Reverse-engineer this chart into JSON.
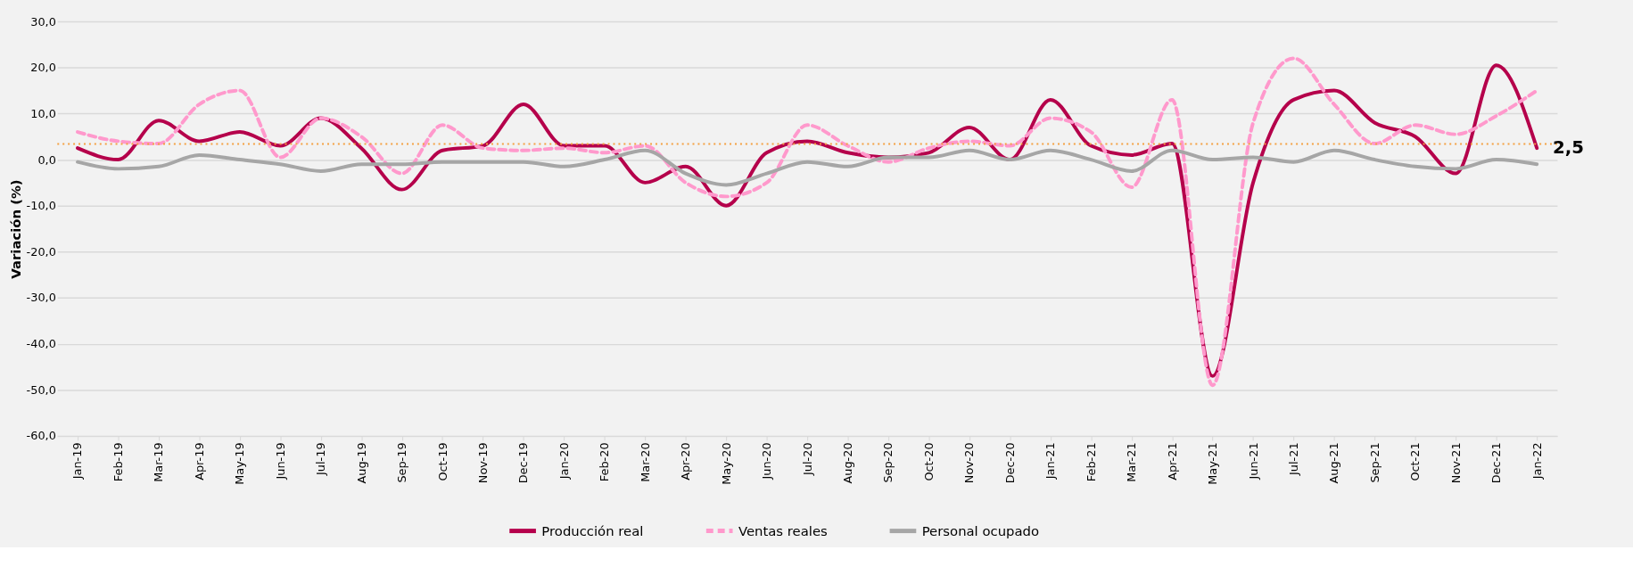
{
  "chart_data": {
    "type": "line",
    "ylabel": "Variación (%)",
    "categories": [
      "Jan-19",
      "Feb-19",
      "Mar-19",
      "Apr-19",
      "May-19",
      "Jun-19",
      "Jul-19",
      "Aug-19",
      "Sep-19",
      "Oct-19",
      "Nov-19",
      "Dec-19",
      "Jan-20",
      "Feb-20",
      "Mar-20",
      "Apr-20",
      "May-20",
      "Jun-20",
      "Jul-20",
      "Aug-20",
      "Sep-20",
      "Oct-20",
      "Nov-20",
      "Dec-20",
      "Jan-21",
      "Feb-21",
      "Mar-21",
      "Apr-21",
      "May-21",
      "Jun-21",
      "Jul-21",
      "Aug-21",
      "Sep-21",
      "Oct-21",
      "Nov-21",
      "Dec-21",
      "Jan-22"
    ],
    "series": [
      {
        "name": "Producción real",
        "color": "#b5004b",
        "line_style": "solid",
        "values": [
          2.5,
          0,
          8.5,
          4,
          6,
          3,
          9,
          2.5,
          -6.5,
          2,
          3,
          12,
          3,
          3,
          -5,
          -1.5,
          -10,
          1.5,
          4,
          1.5,
          0.5,
          1.5,
          7,
          0,
          13,
          3,
          1,
          3.5,
          -47,
          -5,
          13,
          15,
          8,
          5,
          -3,
          20.5,
          2.5
        ],
        "value_labels": [
          null,
          null,
          null,
          null,
          null,
          null,
          null,
          null,
          null,
          null,
          null,
          null,
          null,
          null,
          null,
          null,
          null,
          null,
          null,
          null,
          null,
          null,
          null,
          null,
          null,
          null,
          null,
          null,
          null,
          null,
          null,
          null,
          null,
          null,
          null,
          null,
          "2,5"
        ]
      },
      {
        "name": "Ventas reales",
        "color": "#ff99cc",
        "line_style": "dashed",
        "values": [
          6,
          4,
          3.5,
          12,
          15,
          0.5,
          9,
          5,
          -3,
          7.5,
          2.5,
          2,
          2.5,
          1.5,
          3,
          -5,
          -8,
          -5,
          7.5,
          3,
          -0.5,
          2.5,
          4,
          3,
          9,
          6,
          -6,
          13,
          -49,
          8,
          22,
          12,
          3.5,
          7.5,
          5.5,
          9.5,
          15
        ]
      },
      {
        "name": "Personal ocupado",
        "color": "#a6a6a6",
        "line_style": "solid",
        "values": [
          -0.5,
          -2,
          -1.5,
          1,
          0,
          -1,
          -2.5,
          -1,
          -1,
          -0.5,
          -0.5,
          -0.5,
          -1.5,
          0,
          2,
          -3,
          -5.5,
          -3,
          -0.5,
          -1.5,
          0.5,
          0.5,
          2,
          0,
          2,
          0,
          -2.5,
          2,
          0,
          0.5,
          -0.5,
          2,
          0,
          -1.5,
          -2,
          0,
          -1
        ]
      }
    ],
    "ylim": [
      -60,
      30
    ],
    "yticks": [
      {
        "value": -60,
        "label": "-60,0"
      },
      {
        "value": -50,
        "label": "-50,0"
      },
      {
        "value": -40,
        "label": "-40,0"
      },
      {
        "value": -30,
        "label": "-30,0"
      },
      {
        "value": -20,
        "label": "-20,0"
      },
      {
        "value": -10,
        "label": "-10,0"
      },
      {
        "value": 0,
        "label": "0,0"
      },
      {
        "value": 10,
        "label": "10,0"
      },
      {
        "value": 20,
        "label": "20,0"
      },
      {
        "value": 30,
        "label": "30,0"
      }
    ],
    "ref_lines": [
      {
        "axis": "y",
        "value": 3.4,
        "color": "#f4a040",
        "line_style": "dotted"
      }
    ],
    "grid": "y",
    "legend": "bottom",
    "marker": "none"
  }
}
